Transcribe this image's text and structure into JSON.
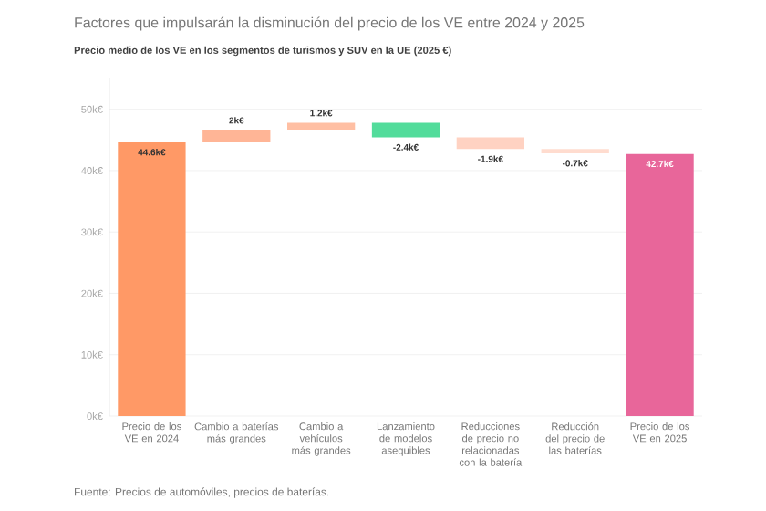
{
  "chart_data": {
    "type": "bar",
    "title": "Factores que impulsarán la disminución del precio de los VE entre 2024 y 2025",
    "subtitle": "Precio medio de los VE en los segmentos de turismos y SUV en la UE (2025 €)",
    "categories": [
      "Precio de los VE en 2024",
      "Cambio a baterías más grandes",
      "Cambio a vehículos más grandes",
      "Lanzamiento de modelos asequibles",
      "Reducciones de precio no relacionadas con la batería",
      "Reducción del precio de las baterías",
      "Precio de los VE en 2025"
    ],
    "values": [
      44.6,
      2,
      1.2,
      -2.4,
      -1.9,
      -0.7,
      42.7
    ],
    "base": [
      0,
      44.6,
      46.6,
      47.8,
      45.4,
      43.5,
      0
    ],
    "value_labels": [
      "44.6k€",
      "2k€",
      "1.2k€",
      "-2.4k€",
      "-1.9k€",
      "-0.7k€",
      "42.7k€"
    ],
    "colors": [
      "#ff9966",
      "#ffb596",
      "#ffbfa3",
      "#52dc9b",
      "#ffd2c2",
      "#ffdccf",
      "#e8669a"
    ],
    "ylim": [
      0,
      55
    ],
    "yticks": [
      {
        "value": 0,
        "label": "0k€"
      },
      {
        "value": 10,
        "label": "10k€"
      },
      {
        "value": 20,
        "label": "20k€"
      },
      {
        "value": 30,
        "label": "30k€"
      },
      {
        "value": 40,
        "label": "40k€"
      },
      {
        "value": 50,
        "label": "50k€"
      }
    ],
    "grid": "y",
    "annotations": [
      "Fuente: Precios de automóviles, precios de baterías."
    ]
  }
}
